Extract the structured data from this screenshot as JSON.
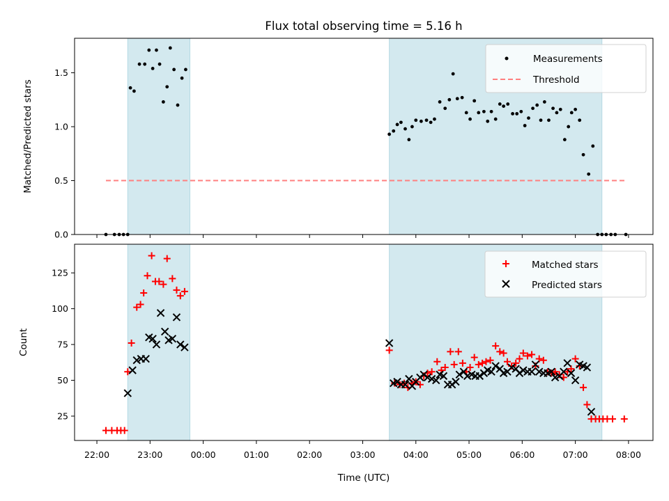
{
  "chart_data": {
    "type": "scatter",
    "title": "Flux total observing time = 5.16 h",
    "xlabel": "Time (UTC)",
    "x_tick_labels": [
      "22:00",
      "23:00",
      "00:00",
      "01:00",
      "02:00",
      "03:00",
      "04:00",
      "05:00",
      "06:00",
      "07:00",
      "08:00"
    ],
    "x_tick_hours": [
      0,
      1,
      2,
      3,
      4,
      5,
      6,
      7,
      8,
      9,
      10
    ],
    "xlim_hours": [
      -0.42,
      10.46
    ],
    "x_origin": "22:00",
    "shaded_intervals_hours": [
      [
        0.58,
        1.75
      ],
      [
        5.5,
        9.5
      ]
    ],
    "shade_color": "#d3e9ef",
    "panels": [
      {
        "ylabel": "Matched/Predicted stars",
        "ylim": [
          0,
          1.82
        ],
        "yticks": [
          0.0,
          0.5,
          1.0,
          1.5
        ],
        "ytick_labels": [
          "0.0",
          "0.5",
          "1.0",
          "1.5"
        ],
        "legend": "top-right",
        "series": [
          {
            "name": "Measurements",
            "marker": "dot",
            "color": "#000000",
            "points": [
              [
                0.17,
                0.0
              ],
              [
                0.33,
                0.0
              ],
              [
                0.42,
                0.0
              ],
              [
                0.5,
                0.0
              ],
              [
                0.58,
                0.0
              ],
              [
                0.63,
                1.36
              ],
              [
                0.7,
                1.33
              ],
              [
                0.8,
                1.58
              ],
              [
                0.9,
                1.58
              ],
              [
                0.98,
                1.71
              ],
              [
                1.05,
                1.54
              ],
              [
                1.12,
                1.71
              ],
              [
                1.18,
                1.58
              ],
              [
                1.25,
                1.23
              ],
              [
                1.32,
                1.37
              ],
              [
                1.38,
                1.73
              ],
              [
                1.45,
                1.53
              ],
              [
                1.52,
                1.2
              ],
              [
                1.6,
                1.45
              ],
              [
                1.67,
                1.53
              ],
              [
                5.5,
                0.93
              ],
              [
                5.58,
                0.96
              ],
              [
                5.65,
                1.02
              ],
              [
                5.72,
                1.04
              ],
              [
                5.8,
                0.98
              ],
              [
                5.87,
                0.88
              ],
              [
                5.93,
                1.0
              ],
              [
                6.0,
                1.06
              ],
              [
                6.1,
                1.05
              ],
              [
                6.2,
                1.06
              ],
              [
                6.28,
                1.04
              ],
              [
                6.35,
                1.07
              ],
              [
                6.45,
                1.23
              ],
              [
                6.55,
                1.17
              ],
              [
                6.63,
                1.25
              ],
              [
                6.7,
                1.49
              ],
              [
                6.78,
                1.26
              ],
              [
                6.87,
                1.27
              ],
              [
                6.95,
                1.13
              ],
              [
                7.02,
                1.07
              ],
              [
                7.1,
                1.24
              ],
              [
                7.18,
                1.13
              ],
              [
                7.28,
                1.14
              ],
              [
                7.35,
                1.05
              ],
              [
                7.42,
                1.14
              ],
              [
                7.5,
                1.07
              ],
              [
                7.58,
                1.21
              ],
              [
                7.65,
                1.19
              ],
              [
                7.73,
                1.21
              ],
              [
                7.82,
                1.12
              ],
              [
                7.9,
                1.12
              ],
              [
                7.98,
                1.14
              ],
              [
                8.05,
                1.01
              ],
              [
                8.12,
                1.08
              ],
              [
                8.2,
                1.17
              ],
              [
                8.28,
                1.2
              ],
              [
                8.35,
                1.06
              ],
              [
                8.42,
                1.23
              ],
              [
                8.5,
                1.06
              ],
              [
                8.58,
                1.17
              ],
              [
                8.65,
                1.13
              ],
              [
                8.72,
                1.16
              ],
              [
                8.8,
                0.88
              ],
              [
                8.87,
                1.0
              ],
              [
                8.93,
                1.13
              ],
              [
                9.0,
                1.16
              ],
              [
                9.08,
                1.06
              ],
              [
                9.15,
                0.74
              ],
              [
                9.25,
                0.56
              ],
              [
                9.33,
                0.82
              ],
              [
                9.42,
                0.0
              ],
              [
                9.5,
                0.0
              ],
              [
                9.58,
                0.0
              ],
              [
                9.67,
                0.0
              ],
              [
                9.75,
                0.0
              ],
              [
                9.95,
                0.0
              ]
            ]
          },
          {
            "name": "Threshold",
            "marker": "dashed-line",
            "color": "#ff7f7f",
            "value": 0.5,
            "x_range_hours": [
              0.17,
              9.95
            ]
          }
        ]
      },
      {
        "ylabel": "Count",
        "ylim": [
          8,
          145
        ],
        "yticks": [
          25,
          50,
          75,
          100,
          125
        ],
        "ytick_labels": [
          "25",
          "50",
          "75",
          "100",
          "125"
        ],
        "legend": "top-right",
        "series": [
          {
            "name": "Matched stars",
            "marker": "plus",
            "color": "#ff0000",
            "points": [
              [
                0.17,
                15
              ],
              [
                0.28,
                15
              ],
              [
                0.38,
                15
              ],
              [
                0.45,
                15
              ],
              [
                0.52,
                15
              ],
              [
                0.58,
                56
              ],
              [
                0.65,
                76
              ],
              [
                0.75,
                101
              ],
              [
                0.82,
                103
              ],
              [
                0.88,
                111
              ],
              [
                0.95,
                123
              ],
              [
                1.03,
                137
              ],
              [
                1.1,
                119
              ],
              [
                1.17,
                119
              ],
              [
                1.25,
                117
              ],
              [
                1.32,
                135
              ],
              [
                1.42,
                121
              ],
              [
                1.5,
                113
              ],
              [
                1.57,
                109
              ],
              [
                1.65,
                112
              ],
              [
                5.5,
                71
              ],
              [
                5.6,
                48
              ],
              [
                5.7,
                47
              ],
              [
                5.78,
                48
              ],
              [
                5.85,
                45
              ],
              [
                5.92,
                48
              ],
              [
                6.0,
                49
              ],
              [
                6.08,
                47
              ],
              [
                6.15,
                53
              ],
              [
                6.22,
                55
              ],
              [
                6.3,
                56
              ],
              [
                6.4,
                63
              ],
              [
                6.48,
                57
              ],
              [
                6.55,
                59
              ],
              [
                6.65,
                70
              ],
              [
                6.72,
                61
              ],
              [
                6.8,
                70
              ],
              [
                6.88,
                62
              ],
              [
                6.95,
                56
              ],
              [
                7.02,
                59
              ],
              [
                7.1,
                66
              ],
              [
                7.18,
                61
              ],
              [
                7.25,
                62
              ],
              [
                7.32,
                63
              ],
              [
                7.4,
                64
              ],
              [
                7.5,
                74
              ],
              [
                7.58,
                70
              ],
              [
                7.65,
                69
              ],
              [
                7.72,
                63
              ],
              [
                7.8,
                60
              ],
              [
                7.88,
                62
              ],
              [
                7.95,
                65
              ],
              [
                8.02,
                69
              ],
              [
                8.1,
                67
              ],
              [
                8.18,
                68
              ],
              [
                8.25,
                60
              ],
              [
                8.32,
                65
              ],
              [
                8.4,
                64
              ],
              [
                8.48,
                56
              ],
              [
                8.55,
                55
              ],
              [
                8.62,
                56
              ],
              [
                8.7,
                54
              ],
              [
                8.78,
                52
              ],
              [
                8.85,
                56
              ],
              [
                8.92,
                58
              ],
              [
                9.0,
                65
              ],
              [
                9.08,
                60
              ],
              [
                9.15,
                45
              ],
              [
                9.22,
                33
              ],
              [
                9.3,
                23
              ],
              [
                9.38,
                23
              ],
              [
                9.45,
                23
              ],
              [
                9.52,
                23
              ],
              [
                9.6,
                23
              ],
              [
                9.7,
                23
              ],
              [
                9.92,
                23
              ]
            ]
          },
          {
            "name": "Predicted stars",
            "marker": "x",
            "color": "#000000",
            "points": [
              [
                0.58,
                41
              ],
              [
                0.67,
                57
              ],
              [
                0.75,
                64
              ],
              [
                0.83,
                65
              ],
              [
                0.92,
                65
              ],
              [
                0.98,
                80
              ],
              [
                1.05,
                79
              ],
              [
                1.12,
                75
              ],
              [
                1.2,
                97
              ],
              [
                1.28,
                84
              ],
              [
                1.35,
                78
              ],
              [
                1.42,
                79
              ],
              [
                1.5,
                94
              ],
              [
                1.57,
                75
              ],
              [
                1.65,
                73
              ],
              [
                5.5,
                76
              ],
              [
                5.58,
                48
              ],
              [
                5.65,
                49
              ],
              [
                5.72,
                47
              ],
              [
                5.8,
                47
              ],
              [
                5.87,
                51
              ],
              [
                5.93,
                46
              ],
              [
                6.0,
                49
              ],
              [
                6.08,
                52
              ],
              [
                6.15,
                54
              ],
              [
                6.22,
                52
              ],
              [
                6.3,
                51
              ],
              [
                6.38,
                50
              ],
              [
                6.45,
                54
              ],
              [
                6.52,
                53
              ],
              [
                6.6,
                47
              ],
              [
                6.68,
                47
              ],
              [
                6.75,
                49
              ],
              [
                6.82,
                54
              ],
              [
                6.9,
                56
              ],
              [
                6.97,
                53
              ],
              [
                7.05,
                54
              ],
              [
                7.12,
                53
              ],
              [
                7.2,
                53
              ],
              [
                7.28,
                55
              ],
              [
                7.35,
                57
              ],
              [
                7.42,
                56
              ],
              [
                7.5,
                60
              ],
              [
                7.58,
                58
              ],
              [
                7.65,
                55
              ],
              [
                7.72,
                56
              ],
              [
                7.8,
                59
              ],
              [
                7.88,
                58
              ],
              [
                7.95,
                55
              ],
              [
                8.02,
                57
              ],
              [
                8.1,
                56
              ],
              [
                8.18,
                56
              ],
              [
                8.25,
                61
              ],
              [
                8.32,
                56
              ],
              [
                8.4,
                55
              ],
              [
                8.48,
                55
              ],
              [
                8.55,
                56
              ],
              [
                8.62,
                52
              ],
              [
                8.7,
                53
              ],
              [
                8.78,
                56
              ],
              [
                8.85,
                62
              ],
              [
                8.92,
                55
              ],
              [
                9.0,
                50
              ],
              [
                9.08,
                61
              ],
              [
                9.15,
                60
              ],
              [
                9.22,
                59
              ],
              [
                9.3,
                28
              ]
            ]
          }
        ]
      }
    ]
  }
}
